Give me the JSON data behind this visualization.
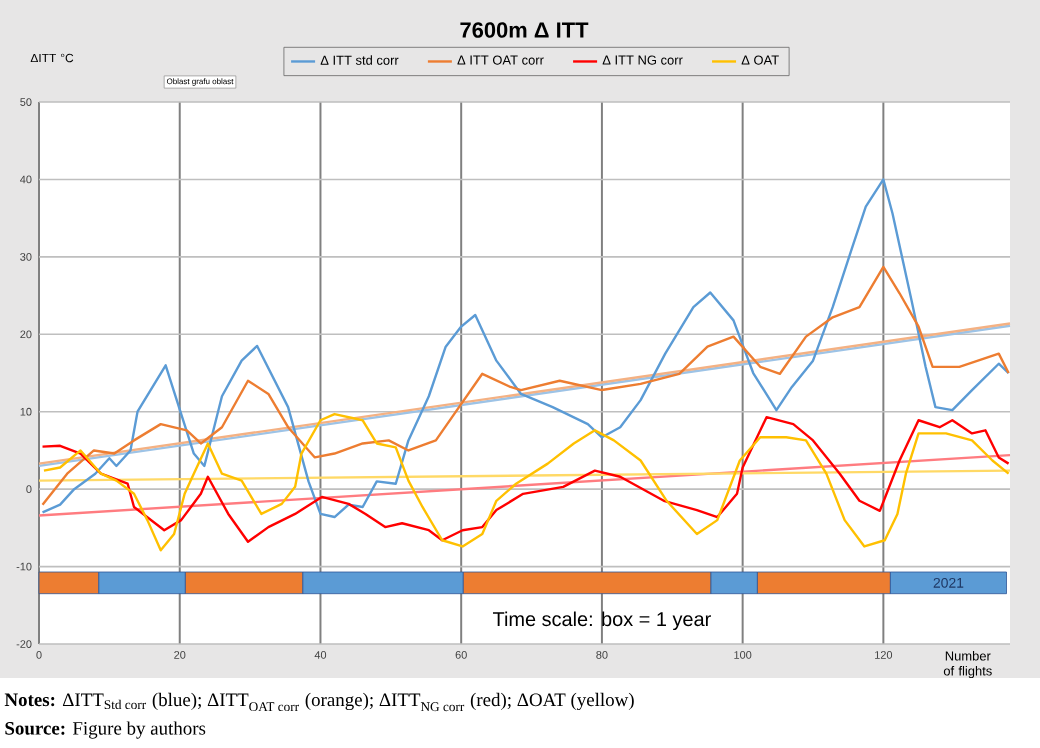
{
  "chart_data": {
    "type": "line",
    "title": "7600m Δ ITT",
    "ylabel": "ΔITT °C",
    "xlabel": "Number of flights",
    "xlim": [
      0,
      138
    ],
    "xticks": [
      0,
      20,
      40,
      60,
      80,
      100,
      120
    ],
    "ylim": [
      -20,
      50
    ],
    "yticks": [
      -20,
      -10,
      0,
      10,
      20,
      30,
      40,
      50
    ],
    "grid": true,
    "legend": "top",
    "line_style": "solid",
    "series": [
      {
        "name": "Δ ITT std corr",
        "color": "#5b9bd5",
        "x": [
          0.5,
          3,
          5,
          8,
          10,
          11,
          13,
          14,
          18,
          22,
          23.5,
          26,
          28.8,
          31,
          35.4,
          38.3,
          40,
          42,
          44,
          46,
          48,
          50.7,
          52.5,
          55.4,
          57.8,
          60,
          62,
          65,
          68.5,
          73,
          78,
          80,
          82.6,
          85.5,
          89,
          93,
          95.4,
          98.7,
          101.5,
          104.8,
          107,
          110,
          112.8,
          115.6,
          117.5,
          120,
          121.3,
          124,
          126,
          127.4,
          129.8,
          132.6,
          136.4,
          137.8
        ],
        "values": [
          -3,
          -2,
          0,
          2,
          4,
          3,
          5,
          10,
          16,
          4.6,
          3,
          12,
          16.6,
          18.5,
          10.6,
          1,
          -3.2,
          -3.6,
          -2,
          -2.3,
          1,
          0.7,
          6.3,
          12,
          18.4,
          21,
          22.5,
          16.6,
          12.3,
          10.6,
          8.4,
          6.7,
          8,
          11.5,
          17.5,
          23.5,
          25.4,
          21.8,
          15,
          10.2,
          13.2,
          16.6,
          23.5,
          31.3,
          36.5,
          40,
          35.6,
          24.4,
          15.8,
          10.6,
          10.2,
          12.8,
          16.2,
          15
        ]
      },
      {
        "name": "Δ ITT OAT corr",
        "color": "#ed7d31",
        "x": [
          0.5,
          4,
          7.8,
          10.7,
          13.5,
          17.3,
          21,
          23,
          26,
          29.7,
          32.6,
          35.4,
          39.2,
          42,
          46,
          49.7,
          52.5,
          56.4,
          59,
          63,
          67,
          68.5,
          74,
          80,
          85.5,
          91,
          95,
          98.7,
          102.5,
          105.3,
          109,
          112.8,
          116.6,
          120,
          122.3,
          125,
          127,
          130.8,
          136.4,
          137.8
        ],
        "values": [
          -2,
          2,
          5,
          4.6,
          6.3,
          8.4,
          7.6,
          5.9,
          8,
          14,
          12.3,
          8,
          4.1,
          4.6,
          5.9,
          6.3,
          5,
          6.3,
          9.7,
          14.9,
          13.2,
          12.8,
          14,
          12.8,
          13.6,
          14.9,
          18.4,
          19.7,
          15.8,
          14.9,
          19.7,
          22.2,
          23.5,
          28.7,
          25.3,
          21,
          15.8,
          15.8,
          17.5,
          15
        ]
      },
      {
        "name": "Δ ITT NG corr",
        "color": "#ff0000",
        "x": [
          0.5,
          3,
          5.9,
          8.8,
          12.6,
          13.5,
          17.8,
          20.2,
          23,
          24,
          26.9,
          29.7,
          32.6,
          36.4,
          40.2,
          44,
          46.4,
          49.2,
          51.6,
          55.4,
          57.3,
          60.2,
          63,
          65,
          68.8,
          74.5,
          79,
          82.6,
          88.8,
          93.5,
          96.4,
          99.2,
          100,
          103.4,
          107.2,
          110,
          113.8,
          116.6,
          119.5,
          122.3,
          125,
          128,
          129.8,
          132.6,
          134.5,
          136.4,
          137.8
        ],
        "values": [
          5.5,
          5.6,
          4.6,
          2,
          0.7,
          -2.3,
          -5.3,
          -4,
          -0.6,
          1.6,
          -3.2,
          -6.8,
          -4.9,
          -3.2,
          -1,
          -1.9,
          -3.2,
          -4.9,
          -4.4,
          -5.3,
          -6.6,
          -5.3,
          -4.9,
          -2.7,
          -0.6,
          0.3,
          2.4,
          1.6,
          -1.5,
          -2.7,
          -3.6,
          -0.6,
          2.8,
          9.3,
          8.4,
          6.3,
          2,
          -1.5,
          -2.8,
          3.7,
          8.9,
          8,
          8.9,
          7.2,
          7.6,
          4.1,
          3.3
        ]
      },
      {
        "name": "Δ OAT",
        "color": "#ffc000",
        "x": [
          0.7,
          3,
          5.9,
          8.8,
          11,
          13.5,
          15.4,
          17.3,
          19.2,
          20.7,
          22,
          24,
          26,
          28.8,
          31.6,
          34.5,
          36.4,
          37.3,
          40,
          42,
          46,
          48,
          50.7,
          52.5,
          54.5,
          57.3,
          60.2,
          63,
          65,
          67.8,
          72.3,
          76,
          79,
          81.7,
          85.5,
          89.2,
          93.5,
          96.4,
          99.6,
          102.5,
          106.2,
          109,
          111.9,
          114.5,
          117.3,
          120.2,
          122,
          123.2,
          125,
          128.9,
          132.6,
          135.5,
          137.8
        ],
        "values": [
          2.4,
          2.8,
          5,
          2,
          1.1,
          -0.6,
          -4,
          -7.9,
          -5.8,
          -0.6,
          2,
          5.9,
          2,
          1.1,
          -3.2,
          -1.9,
          0.3,
          4.6,
          8.9,
          9.7,
          8.9,
          5.9,
          5.4,
          1.1,
          -2.3,
          -6.6,
          -7.4,
          -5.8,
          -1.5,
          0.7,
          3.3,
          5.9,
          7.6,
          6.3,
          3.7,
          -1.5,
          -5.8,
          -4,
          3.7,
          6.7,
          6.7,
          6.3,
          2,
          -4,
          -7.4,
          -6.6,
          -3.2,
          2,
          7.2,
          7.2,
          6.3,
          3.7,
          2
        ]
      },
      {
        "color": "#9dc3e6",
        "x": [
          0,
          138
        ],
        "values": [
          3,
          21.1
        ]
      },
      {
        "color": "#f4b183",
        "x": [
          0,
          138
        ],
        "values": [
          3.3,
          21.4
        ]
      },
      {
        "color": "#ff7c80",
        "x": [
          0,
          138
        ],
        "values": [
          -3.4,
          4.4
        ]
      },
      {
        "color": "#ffd966",
        "x": [
          0,
          138
        ],
        "values": [
          1.1,
          2.4
        ]
      }
    ],
    "bands": [
      {
        "axis": "x",
        "from": 0,
        "to": 8.5,
        "color": "#ed7d31"
      },
      {
        "axis": "x",
        "from": 8.5,
        "to": 20.8,
        "color": "#5b9bd5"
      },
      {
        "axis": "x",
        "from": 20.8,
        "to": 37.5,
        "color": "#ed7d31"
      },
      {
        "axis": "x",
        "from": 37.5,
        "to": 60.3,
        "color": "#5b9bd5"
      },
      {
        "axis": "x",
        "from": 60.3,
        "to": 95.5,
        "color": "#ed7d31"
      },
      {
        "axis": "x",
        "from": 95.5,
        "to": 102.1,
        "color": "#5b9bd5"
      },
      {
        "axis": "x",
        "from": 102.1,
        "to": 121,
        "color": "#ed7d31"
      },
      {
        "axis": "x",
        "from": 121,
        "to": 137.5,
        "color": "#5b9bd5",
        "label": "2021"
      }
    ],
    "annotations": [
      "Time scale:  box = 1 year",
      "\\text{\\textbf{Notes:} ΔITT}_{\\text{Std corr}}\\text{ (blue); ΔITT}_{\\text{OAT corr}}\\text{ (orange); ΔITT}_{\\text{NG corr}}\\text{ (red); ΔOAT (yellow)}",
      "**Source:** Figure by authors",
      "Oblast grafu oblast"
    ]
  }
}
